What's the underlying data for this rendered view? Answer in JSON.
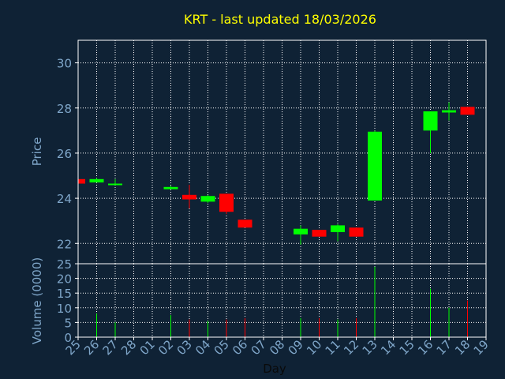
{
  "title": "KRT - last updated 18/03/2026",
  "colors": {
    "background": "#0f2235",
    "title": "#ffff00",
    "axis_text": "#7fa6c9",
    "grid": "#ffffff",
    "frame": "#ffffff",
    "up": "#00ff00",
    "down": "#ff0000",
    "xlabel": "#0a0a0a"
  },
  "chart_data": [
    {
      "type": "candlestick",
      "ylabel": "Price",
      "ylim": [
        21.1,
        31.0
      ],
      "yticks": [
        22,
        24,
        26,
        28,
        30
      ],
      "grid": true,
      "x": [
        "25",
        "26",
        "27",
        "28",
        "01",
        "02",
        "03",
        "04",
        "05",
        "06",
        "07",
        "08",
        "09",
        "10",
        "11",
        "12",
        "13",
        "14",
        "15",
        "16",
        "17",
        "18",
        "19"
      ],
      "candles": [
        {
          "x": "25",
          "open": 24.85,
          "close": 24.65,
          "high": 24.85,
          "low": 24.65,
          "dir": "down"
        },
        {
          "x": "26",
          "open": 24.7,
          "close": 24.85,
          "high": 24.9,
          "low": 24.7,
          "dir": "up"
        },
        {
          "x": "27",
          "open": 24.6,
          "close": 24.65,
          "high": 24.85,
          "low": 24.6,
          "dir": "up"
        },
        {
          "x": "02",
          "open": 24.4,
          "close": 24.5,
          "high": 24.55,
          "low": 24.4,
          "dir": "up"
        },
        {
          "x": "03",
          "open": 24.15,
          "close": 23.95,
          "high": 24.6,
          "low": 23.55,
          "dir": "down"
        },
        {
          "x": "04",
          "open": 23.85,
          "close": 24.1,
          "high": 24.15,
          "low": 23.8,
          "dir": "up"
        },
        {
          "x": "05",
          "open": 24.2,
          "close": 23.4,
          "high": 24.2,
          "low": 23.3,
          "dir": "down"
        },
        {
          "x": "06",
          "open": 23.05,
          "close": 22.7,
          "high": 23.05,
          "low": 22.7,
          "dir": "down"
        },
        {
          "x": "09",
          "open": 22.4,
          "close": 22.65,
          "high": 22.8,
          "low": 21.95,
          "dir": "up"
        },
        {
          "x": "10",
          "open": 22.6,
          "close": 22.3,
          "high": 22.6,
          "low": 22.3,
          "dir": "down"
        },
        {
          "x": "11",
          "open": 22.5,
          "close": 22.8,
          "high": 22.85,
          "low": 22.1,
          "dir": "up"
        },
        {
          "x": "12",
          "open": 22.7,
          "close": 22.3,
          "high": 22.7,
          "low": 22.3,
          "dir": "down"
        },
        {
          "x": "13",
          "open": 23.9,
          "close": 26.95,
          "high": 27.0,
          "low": 23.9,
          "dir": "up"
        },
        {
          "x": "16",
          "open": 27.0,
          "close": 27.85,
          "high": 27.85,
          "low": 26.0,
          "dir": "up"
        },
        {
          "x": "17",
          "open": 27.8,
          "close": 27.9,
          "high": 28.25,
          "low": 27.45,
          "dir": "up"
        },
        {
          "x": "18",
          "open": 28.05,
          "close": 27.7,
          "high": 28.05,
          "low": 27.7,
          "dir": "down"
        }
      ]
    },
    {
      "type": "bar",
      "ylabel": "Volume (0000)",
      "xlabel": "Day",
      "ylim": [
        0,
        25
      ],
      "yticks": [
        0,
        5,
        10,
        15,
        20,
        25
      ],
      "grid": true,
      "x": [
        "25",
        "26",
        "27",
        "28",
        "01",
        "02",
        "03",
        "04",
        "05",
        "06",
        "07",
        "08",
        "09",
        "10",
        "11",
        "12",
        "13",
        "14",
        "15",
        "16",
        "17",
        "18",
        "19"
      ],
      "bars": [
        {
          "x": "26",
          "value": 8,
          "dir": "up"
        },
        {
          "x": "27",
          "value": 5,
          "dir": "up"
        },
        {
          "x": "02",
          "value": 7.5,
          "dir": "up"
        },
        {
          "x": "03",
          "value": 6,
          "dir": "down"
        },
        {
          "x": "04",
          "value": 5.5,
          "dir": "up"
        },
        {
          "x": "05",
          "value": 6,
          "dir": "down"
        },
        {
          "x": "06",
          "value": 6.5,
          "dir": "down"
        },
        {
          "x": "09",
          "value": 6.5,
          "dir": "up"
        },
        {
          "x": "10",
          "value": 6.5,
          "dir": "down"
        },
        {
          "x": "11",
          "value": 6,
          "dir": "up"
        },
        {
          "x": "12",
          "value": 6.5,
          "dir": "down"
        },
        {
          "x": "13",
          "value": 24,
          "dir": "up"
        },
        {
          "x": "16",
          "value": 16.5,
          "dir": "up"
        },
        {
          "x": "17",
          "value": 10,
          "dir": "up"
        },
        {
          "x": "18",
          "value": 12.5,
          "dir": "down"
        }
      ]
    }
  ]
}
